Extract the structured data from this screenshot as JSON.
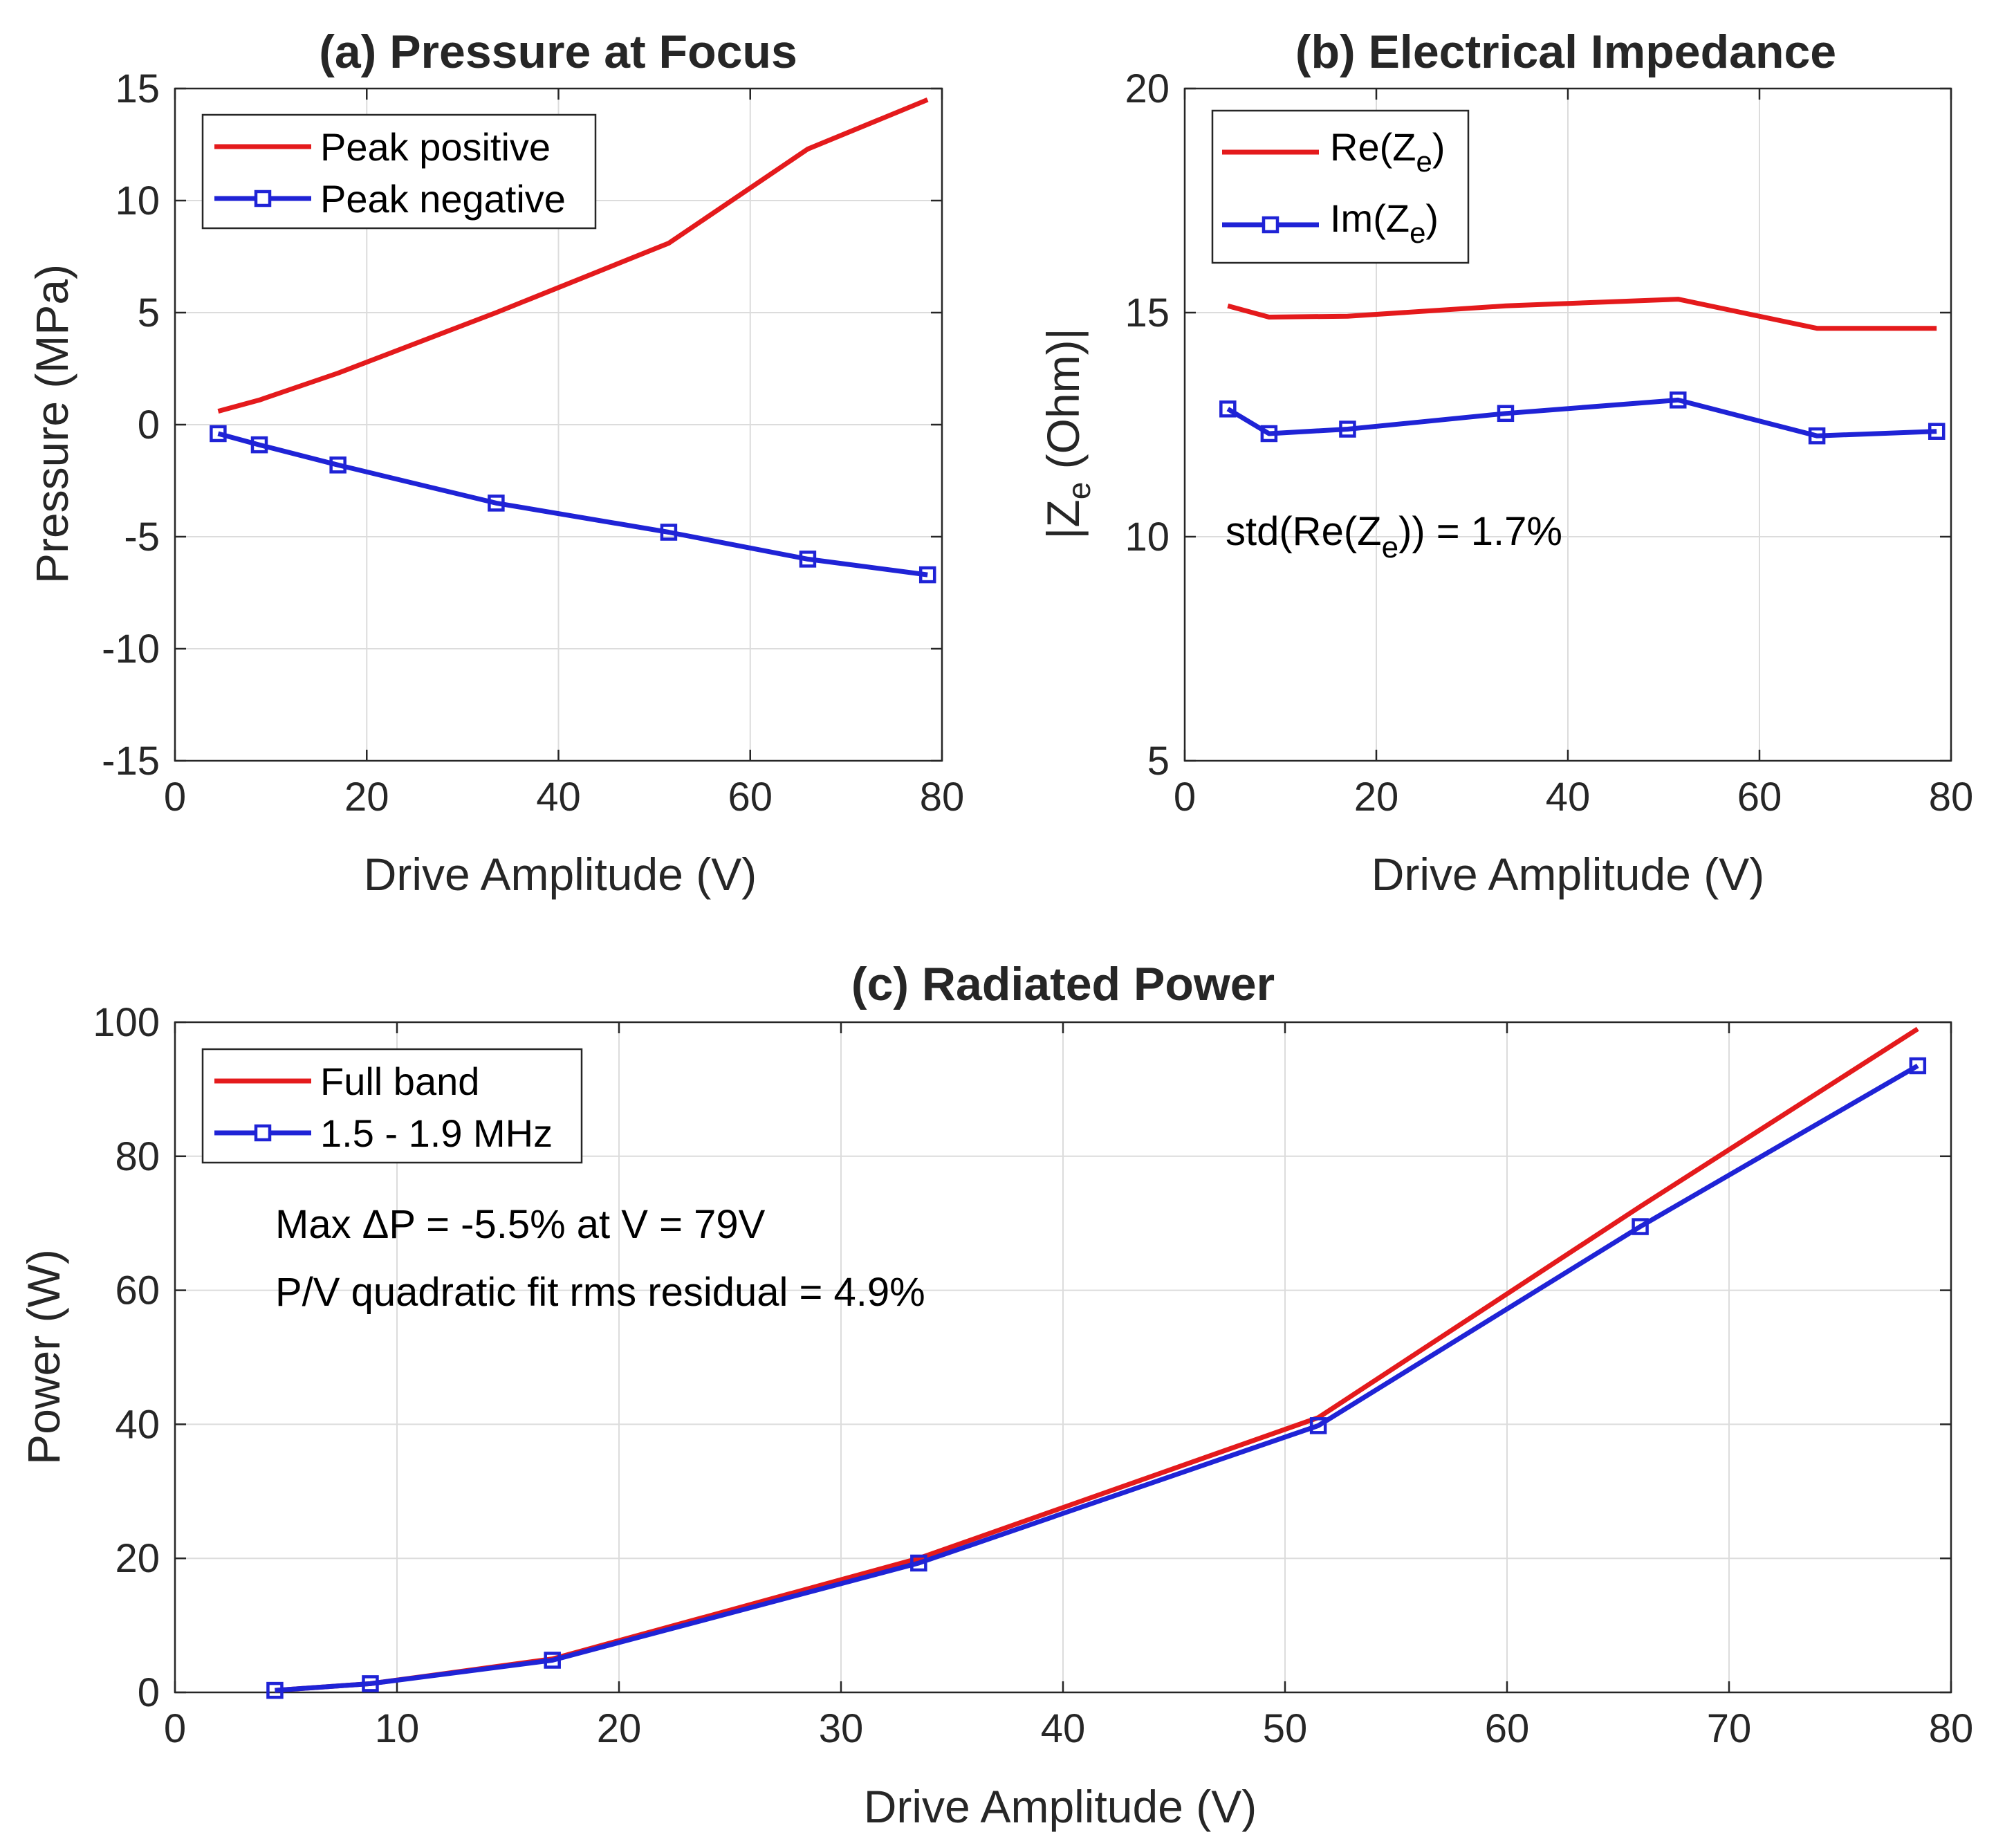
{
  "colors": {
    "red": "#e41a1c",
    "blue": "#1f23d6"
  },
  "chart_data": [
    {
      "id": "a",
      "type": "line",
      "title": "(a) Pressure at Focus",
      "xlabel": "Drive Amplitude (V)",
      "ylabel": "Pressure (MPa)",
      "xlim": [
        0,
        80
      ],
      "ylim": [
        -15,
        15
      ],
      "xticks": [
        0,
        20,
        40,
        60,
        80
      ],
      "yticks": [
        -15,
        -10,
        -5,
        0,
        5,
        10,
        15
      ],
      "grid": true,
      "legend_position": "top-left",
      "series": [
        {
          "name": "Peak positive",
          "color": "red",
          "marker": "none",
          "x": [
            4.5,
            8.8,
            17.0,
            33.5,
            51.5,
            66.0,
            78.5
          ],
          "y": [
            0.6,
            1.1,
            2.3,
            5.0,
            8.1,
            12.3,
            14.5
          ]
        },
        {
          "name": "Peak negative",
          "color": "blue",
          "marker": "square",
          "x": [
            4.5,
            8.8,
            17.0,
            33.5,
            51.5,
            66.0,
            78.5
          ],
          "y": [
            -0.4,
            -0.9,
            -1.8,
            -3.5,
            -4.8,
            -6.0,
            -6.7
          ]
        }
      ],
      "annotations": []
    },
    {
      "id": "b",
      "type": "line",
      "title": "(b) Electrical Impedance",
      "xlabel": "Drive Amplitude (V)",
      "ylabel": "|Ze| (Ohm)",
      "xlim": [
        0,
        80
      ],
      "ylim": [
        5,
        20
      ],
      "xticks": [
        0,
        20,
        40,
        60,
        80
      ],
      "yticks": [
        5,
        10,
        15,
        20
      ],
      "grid": true,
      "legend_position": "top-left",
      "series": [
        {
          "name": "Re(Ze)",
          "color": "red",
          "marker": "none",
          "x": [
            4.5,
            8.8,
            17.0,
            33.5,
            51.5,
            66.0,
            78.5
          ],
          "y": [
            15.15,
            14.9,
            14.92,
            15.15,
            15.3,
            14.65,
            14.65
          ]
        },
        {
          "name": "Im(Ze)",
          "color": "blue",
          "marker": "square",
          "x": [
            4.5,
            8.8,
            17.0,
            33.5,
            51.5,
            66.0,
            78.5
          ],
          "y": [
            12.85,
            12.3,
            12.4,
            12.75,
            13.05,
            12.25,
            12.35
          ]
        }
      ],
      "annotations": [
        "std(Re(Ze)) = 1.7%"
      ]
    },
    {
      "id": "c",
      "type": "line",
      "title": "(c) Radiated Power",
      "xlabel": "Drive Amplitude (V)",
      "ylabel": "Power (W)",
      "xlim": [
        0,
        80
      ],
      "ylim": [
        0,
        100
      ],
      "xticks": [
        0,
        10,
        20,
        30,
        40,
        50,
        60,
        70,
        80
      ],
      "yticks": [
        0,
        20,
        40,
        60,
        80,
        100
      ],
      "grid": true,
      "legend_position": "top-left",
      "series": [
        {
          "name": "Full band",
          "color": "red",
          "marker": "none",
          "x": [
            4.5,
            8.8,
            17.0,
            33.5,
            51.5,
            66.0,
            78.5
          ],
          "y": [
            0.3,
            1.3,
            5.0,
            20.0,
            41.0,
            72.5,
            99.0
          ]
        },
        {
          "name": "1.5 - 1.9 MHz",
          "color": "blue",
          "marker": "square",
          "x": [
            4.5,
            8.8,
            17.0,
            33.5,
            51.5,
            66.0,
            78.5
          ],
          "y": [
            0.3,
            1.3,
            4.8,
            19.3,
            39.8,
            69.5,
            93.5
          ]
        }
      ],
      "annotations": [
        "Max ΔP = -5.5% at V = 79V",
        "P/V quadratic fit rms residual = 4.9%"
      ]
    }
  ]
}
